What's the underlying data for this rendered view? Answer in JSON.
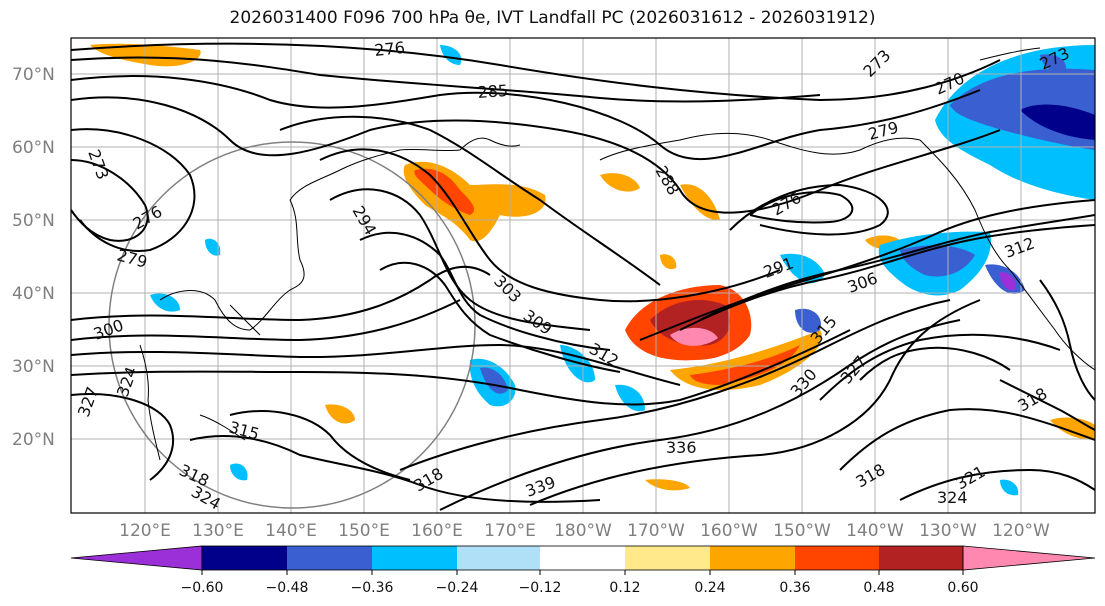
{
  "title": "2026031400 F096 700 hPa θe, IVT Landfall PC (2026031612 - 2026031912)",
  "map": {
    "lat_labels": [
      "70°N",
      "60°N",
      "50°N",
      "40°N",
      "30°N",
      "20°N"
    ],
    "lon_labels": [
      "120°E",
      "130°E",
      "140°E",
      "150°E",
      "160°E",
      "170°E",
      "180°W",
      "170°W",
      "160°W",
      "150°W",
      "140°W",
      "130°W",
      "120°W"
    ],
    "contour_labels": [
      "276",
      "285",
      "273",
      "270",
      "279",
      "273",
      "276",
      "273",
      "279",
      "294",
      "288",
      "276",
      "291",
      "303",
      "306",
      "309",
      "312",
      "300",
      "315",
      "324",
      "327",
      "318",
      "324",
      "315",
      "318",
      "330",
      "327",
      "336",
      "339",
      "318",
      "321",
      "312",
      "324",
      "318"
    ]
  },
  "colorbar": {
    "ticks": [
      "−0.60",
      "−0.48",
      "−0.36",
      "−0.24",
      "−0.12",
      "0.12",
      "0.24",
      "0.36",
      "0.48",
      "0.60"
    ],
    "colors": [
      "#9b30d8",
      "#00008b",
      "#3a5fd0",
      "#00bfff",
      "#b0e0f8",
      "#ffffff",
      "#ffe98a",
      "#ffa500",
      "#ff4500",
      "#b22222",
      "#ff88b0"
    ]
  }
}
